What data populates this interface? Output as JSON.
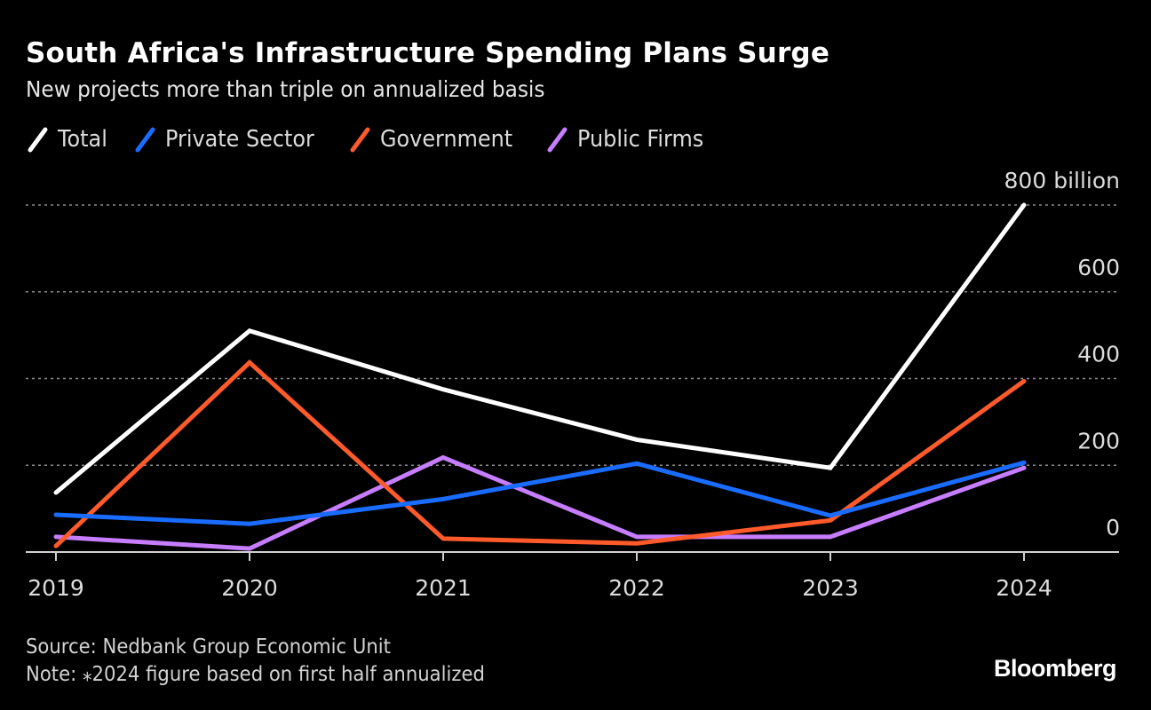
{
  "header": {
    "title": "South Africa's Infrastructure Spending Plans Surge",
    "subtitle": "New projects more than triple on annualized basis"
  },
  "footer": {
    "source": "Source: Nedbank Group Economic Unit",
    "note": "Note: ⁎2024 figure based on first half annualized",
    "brand": "Bloomberg"
  },
  "chart_data": {
    "type": "line",
    "title": "South Africa's Infrastructure Spending Plans Surge",
    "subtitle": "New projects more than triple on annualized basis",
    "xlabel": "",
    "ylabel": "",
    "x": [
      "2019",
      "2020",
      "2021",
      "2022",
      "2023",
      "2024"
    ],
    "ylim": [
      0,
      800
    ],
    "yticks": [
      0,
      200,
      400,
      600,
      800
    ],
    "ytick_labels": [
      "0",
      "200",
      "400",
      "600",
      "800 billion"
    ],
    "grid": true,
    "legend_position": "top-left",
    "series": [
      {
        "name": "Total",
        "color": "#ffffff",
        "values": [
          137,
          510,
          375,
          259,
          194,
          800
        ]
      },
      {
        "name": "Private Sector",
        "color": "#1a6cff",
        "values": [
          86,
          65,
          122,
          204,
          84,
          206
        ]
      },
      {
        "name": "Government",
        "color": "#ff5a2b",
        "values": [
          14,
          437,
          31,
          20,
          73,
          394
        ]
      },
      {
        "name": "Public Firms",
        "color": "#c77dff",
        "values": [
          35,
          8,
          218,
          35,
          35,
          194
        ]
      }
    ]
  }
}
